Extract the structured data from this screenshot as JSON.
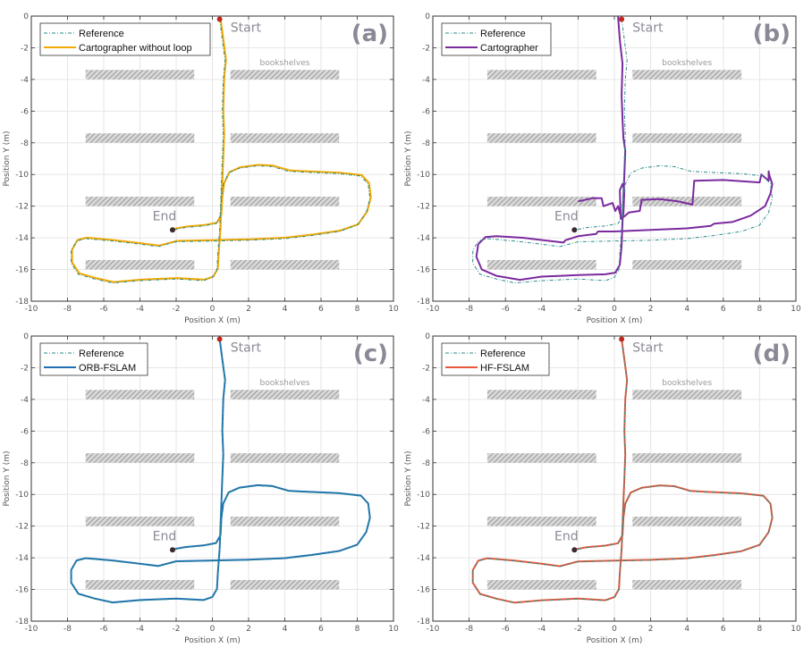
{
  "chart_data": [
    {
      "type": "line",
      "panel_label": "(a)",
      "xlabel": "Position X (m)",
      "ylabel": "Position Y (m)",
      "xlim": [
        -10,
        10
      ],
      "ylim": [
        -18,
        0
      ],
      "xticks": [
        "-10",
        "-8",
        "-6",
        "-4",
        "-2",
        "0",
        "2",
        "4",
        "6",
        "8",
        "10"
      ],
      "yticks": [
        "0",
        "-2",
        "-4",
        "-6",
        "-8",
        "-10",
        "-12",
        "-14",
        "-16",
        "-18"
      ],
      "grid": true,
      "legend_position": "top-left",
      "series": [
        {
          "name": "Reference",
          "style": "dashdot",
          "color": "#2e8b8b",
          "key": "reference"
        },
        {
          "name": "Cartographer without loop",
          "style": "solid",
          "color": "#f2a900",
          "key": "offset_a"
        }
      ]
    },
    {
      "type": "line",
      "panel_label": "(b)",
      "xlabel": "Position X (m)",
      "ylabel": "Position Y (m)",
      "xlim": [
        -10,
        10
      ],
      "ylim": [
        -18,
        0
      ],
      "xticks": [
        "-10",
        "-8",
        "-6",
        "-4",
        "-2",
        "0",
        "2",
        "4",
        "6",
        "8",
        "10"
      ],
      "yticks": [
        "0",
        "-2",
        "-4",
        "-6",
        "-8",
        "-10",
        "-12",
        "-14",
        "-16",
        "-18"
      ],
      "grid": true,
      "legend_position": "top-left",
      "series": [
        {
          "name": "Reference",
          "style": "dashdot",
          "color": "#2e8b8b",
          "key": "reference"
        },
        {
          "name": "Cartographer",
          "style": "solid",
          "color": "#7b2a9e",
          "key": "cartographer"
        }
      ]
    },
    {
      "type": "line",
      "panel_label": "(c)",
      "xlabel": "Position X (m)",
      "ylabel": "Position Y (m)",
      "xlim": [
        -10,
        10
      ],
      "ylim": [
        -18,
        0
      ],
      "xticks": [
        "-10",
        "-8",
        "-6",
        "-4",
        "-2",
        "0",
        "2",
        "4",
        "6",
        "8",
        "10"
      ],
      "yticks": [
        "0",
        "-2",
        "-4",
        "-6",
        "-8",
        "-10",
        "-12",
        "-14",
        "-16",
        "-18"
      ],
      "grid": true,
      "legend_position": "top-left",
      "series": [
        {
          "name": "Reference",
          "style": "dashdot",
          "color": "#2e8b8b",
          "key": "reference"
        },
        {
          "name": "ORB-FSLAM",
          "style": "solid",
          "color": "#1f6fb5",
          "key": "offset_c"
        }
      ]
    },
    {
      "type": "line",
      "panel_label": "(d)",
      "xlabel": "Position X (m)",
      "ylabel": "Position Y (m)",
      "xlim": [
        -10,
        10
      ],
      "ylim": [
        -18,
        0
      ],
      "xticks": [
        "-10",
        "-8",
        "-6",
        "-4",
        "-2",
        "0",
        "2",
        "4",
        "6",
        "8",
        "10"
      ],
      "yticks": [
        "0",
        "-2",
        "-4",
        "-6",
        "-8",
        "-10",
        "-12",
        "-14",
        "-16",
        "-18"
      ],
      "grid": true,
      "legend_position": "top-left",
      "series": [
        {
          "name": "Reference",
          "style": "dashdot",
          "color": "#2e8b8b",
          "key": "reference"
        },
        {
          "name": "HF-FSLAM",
          "style": "solid",
          "color": "#e8583a",
          "key": "offset_d"
        }
      ]
    }
  ],
  "annotations": {
    "start": "Start",
    "end": "End",
    "shelves": "bookshelves",
    "start_point": [
      0.4,
      -0.2
    ],
    "end_point": [
      -2.2,
      -13.5
    ],
    "start_color": "#c0281c",
    "end_color": "#3a2a2a"
  },
  "bookshelves": [
    {
      "x": [
        -7,
        -1
      ],
      "y": [
        -4,
        -3.4
      ]
    },
    {
      "x": [
        1,
        7
      ],
      "y": [
        -4,
        -3.4
      ]
    },
    {
      "x": [
        -7,
        -1
      ],
      "y": [
        -8,
        -7.4
      ]
    },
    {
      "x": [
        1,
        7
      ],
      "y": [
        -8,
        -7.4
      ]
    },
    {
      "x": [
        -7,
        -1
      ],
      "y": [
        -12,
        -11.4
      ]
    },
    {
      "x": [
        1,
        7
      ],
      "y": [
        -12,
        -11.4
      ]
    },
    {
      "x": [
        -7,
        -1
      ],
      "y": [
        -16,
        -15.4
      ]
    },
    {
      "x": [
        1,
        7
      ],
      "y": [
        -16,
        -15.4
      ]
    }
  ],
  "trajectories": {
    "reference": [
      [
        0.4,
        -0.2
      ],
      [
        0.55,
        -1.5
      ],
      [
        0.7,
        -2.8
      ],
      [
        0.6,
        -4
      ],
      [
        0.55,
        -6
      ],
      [
        0.6,
        -7.5
      ],
      [
        0.55,
        -9
      ],
      [
        0.5,
        -10.5
      ],
      [
        0.45,
        -12
      ],
      [
        0.4,
        -13.5
      ],
      [
        0.3,
        -15
      ],
      [
        0.25,
        -16
      ],
      [
        0,
        -16.5
      ],
      [
        -0.5,
        -16.7
      ],
      [
        -2,
        -16.6
      ],
      [
        -4,
        -16.7
      ],
      [
        -5.5,
        -16.85
      ],
      [
        -6.5,
        -16.6
      ],
      [
        -7.4,
        -16.3
      ],
      [
        -7.8,
        -15.6
      ],
      [
        -7.8,
        -14.8
      ],
      [
        -7.5,
        -14.2
      ],
      [
        -7,
        -14.05
      ],
      [
        -5.5,
        -14.2
      ],
      [
        -4,
        -14.4
      ],
      [
        -3,
        -14.55
      ],
      [
        -2,
        -14.25
      ],
      [
        0,
        -14.2
      ],
      [
        2,
        -14.15
      ],
      [
        4,
        -14.05
      ],
      [
        5.5,
        -13.85
      ],
      [
        7,
        -13.6
      ],
      [
        8,
        -13.2
      ],
      [
        8.5,
        -12.4
      ],
      [
        8.7,
        -11.5
      ],
      [
        8.6,
        -10.6
      ],
      [
        8.2,
        -10.1
      ],
      [
        7,
        -9.95
      ],
      [
        5,
        -9.85
      ],
      [
        4.2,
        -9.8
      ],
      [
        3.3,
        -9.5
      ],
      [
        2.5,
        -9.45
      ],
      [
        1.5,
        -9.6
      ],
      [
        0.9,
        -9.9
      ],
      [
        0.6,
        -10.6
      ],
      [
        0.5,
        -11.5
      ],
      [
        0.45,
        -12.6
      ],
      [
        0.2,
        -13.1
      ],
      [
        -0.5,
        -13.25
      ],
      [
        -1.5,
        -13.35
      ],
      [
        -2.2,
        -13.5
      ]
    ],
    "cartographer": [
      [
        0.2,
        0
      ],
      [
        0.3,
        -1.5
      ],
      [
        0.45,
        -3
      ],
      [
        0.4,
        -5
      ],
      [
        0.45,
        -6.5
      ],
      [
        0.5,
        -7.7
      ],
      [
        0.6,
        -8.5
      ],
      [
        0.55,
        -10
      ],
      [
        0.5,
        -11.5
      ],
      [
        0.45,
        -13
      ],
      [
        0.4,
        -14.5
      ],
      [
        0.3,
        -15.7
      ],
      [
        0.05,
        -16.2
      ],
      [
        -0.5,
        -16.3
      ],
      [
        -2,
        -16.35
      ],
      [
        -4,
        -16.45
      ],
      [
        -5.2,
        -16.65
      ],
      [
        -6.5,
        -16.4
      ],
      [
        -7.3,
        -16
      ],
      [
        -7.6,
        -15.2
      ],
      [
        -7.5,
        -14.4
      ],
      [
        -7.1,
        -13.95
      ],
      [
        -6.5,
        -13.9
      ],
      [
        -5,
        -14
      ],
      [
        -3.5,
        -14.2
      ],
      [
        -2.8,
        -14.3
      ],
      [
        -2.7,
        -14.15
      ],
      [
        -2,
        -13.9
      ],
      [
        -1,
        -13.75
      ],
      [
        -0.9,
        -13.6
      ],
      [
        0,
        -13.6
      ],
      [
        2,
        -13.5
      ],
      [
        4,
        -13.4
      ],
      [
        5.3,
        -13.25
      ],
      [
        5.5,
        -13.1
      ],
      [
        6.5,
        -13
      ],
      [
        7.5,
        -12.6
      ],
      [
        8.3,
        -12
      ],
      [
        8.6,
        -11.2
      ],
      [
        8.7,
        -10.6
      ],
      [
        8.55,
        -10.1
      ],
      [
        8.5,
        -9.8
      ],
      [
        8.5,
        -10.4
      ],
      [
        8.1,
        -10
      ],
      [
        8,
        -10.5
      ],
      [
        6,
        -10.35
      ],
      [
        4.4,
        -10.4
      ],
      [
        4.3,
        -11.9
      ],
      [
        3.5,
        -11.7
      ],
      [
        2.5,
        -11.55
      ],
      [
        1.5,
        -11.6
      ],
      [
        1.4,
        -12.3
      ],
      [
        0.8,
        -12.4
      ],
      [
        0.6,
        -12.6
      ],
      [
        0.35,
        -12.8
      ],
      [
        0.3,
        -11
      ],
      [
        0.45,
        -10.6
      ],
      [
        0.55,
        -11
      ],
      [
        0.5,
        -12.5
      ],
      [
        0.4,
        -12.8
      ],
      [
        0.2,
        -12
      ],
      [
        0.05,
        -12.3
      ],
      [
        -0.1,
        -11.8
      ],
      [
        -0.6,
        -12
      ],
      [
        -0.7,
        -11.5
      ],
      [
        -1.2,
        -11.5
      ],
      [
        -2,
        -11.7
      ]
    ],
    "end_point_reference": [
      -2.2,
      -13.5
    ]
  },
  "legend_labels": {
    "a": [
      "Reference",
      "Cartographer without loop"
    ],
    "b": [
      "Reference",
      "Cartographer"
    ],
    "c": [
      "Reference",
      "ORB-FSLAM"
    ],
    "d": [
      "Reference",
      "HF-FSLAM"
    ]
  }
}
